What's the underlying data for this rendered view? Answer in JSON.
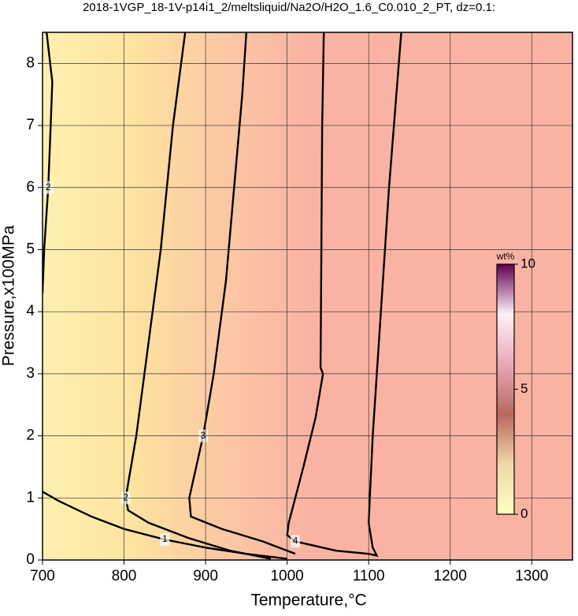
{
  "chart_data": {
    "type": "contour",
    "title": "2018-1VGP_18-1V-p14i1_2/meltsliquid/Na2O/H2O_1.6_C0.010_2_PT, dz=0.1:",
    "xlabel": "Temperature,°C",
    "ylabel": "Pressure,x100MPa",
    "xlim": [
      700,
      1350
    ],
    "ylim": [
      0,
      8.5
    ],
    "xticks": [
      700,
      800,
      900,
      1000,
      1100,
      1200,
      1300
    ],
    "yticks": [
      0,
      1,
      2,
      3,
      4,
      5,
      6,
      7,
      8
    ],
    "grid": true,
    "background_colors": [
      "#fff0b0",
      "#fde3a0",
      "#fbc9a4",
      "#fab3a3"
    ],
    "series": [
      {
        "name": "1",
        "color": "#000000",
        "x": [
          700,
          720,
          760,
          800,
          850,
          900,
          950,
          1000
        ],
        "y": [
          1.1,
          0.95,
          0.7,
          0.5,
          0.33,
          0.2,
          0.1,
          0.02
        ]
      },
      {
        "name": "2",
        "color": "#000000",
        "x": [
          705,
          712,
          710,
          707,
          702,
          700
        ],
        "y": [
          8.5,
          7.7,
          7,
          6,
          5,
          4.3
        ]
      },
      {
        "name": "2",
        "color": "#000000",
        "x": [
          875,
          860,
          845,
          830,
          815,
          802,
          805,
          830,
          880,
          930,
          980
        ],
        "y": [
          8.5,
          7,
          5,
          3.5,
          2,
          1,
          0.8,
          0.6,
          0.35,
          0.15,
          0.02
        ]
      },
      {
        "name": "3",
        "color": "#000000",
        "x": [
          950,
          945,
          935,
          925,
          910,
          897,
          880,
          882,
          920,
          970,
          1010
        ],
        "y": [
          8.5,
          7.5,
          6,
          4.5,
          3,
          2,
          1,
          0.7,
          0.5,
          0.3,
          0.1
        ]
      },
      {
        "name": "4",
        "color": "#000000",
        "x": [
          1045,
          1043,
          1042,
          1041,
          1044,
          1035,
          1020,
          1002,
          1000,
          1010,
          1060,
          1100,
          1110,
          1105,
          1100,
          1105,
          1115,
          1125,
          1140
        ],
        "y": [
          8.5,
          7,
          5,
          3.1,
          3,
          2.3,
          1.5,
          0.6,
          0.4,
          0.3,
          0.15,
          0.1,
          0.07,
          0.2,
          0.6,
          2,
          4,
          6,
          8.5
        ]
      }
    ],
    "colorbar": {
      "label": "wt%",
      "lim": [
        0,
        10
      ],
      "ticks": [
        0,
        5,
        10
      ],
      "colors": [
        "#ffffc0",
        "#f0d8a8",
        "#b86860",
        "#e8a8b8",
        "#fff0fa",
        "#600050"
      ]
    }
  }
}
